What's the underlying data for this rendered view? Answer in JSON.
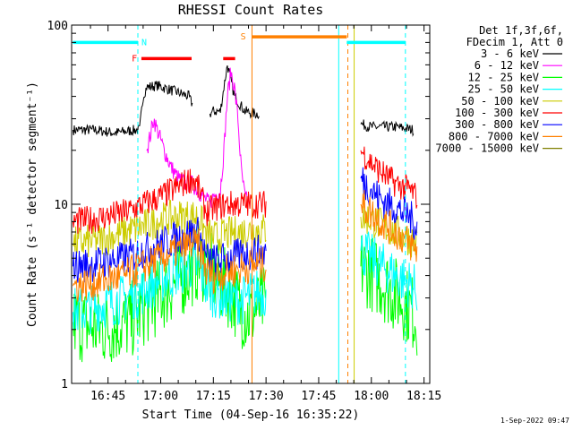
{
  "chart_data": {
    "type": "line",
    "title": "RHESSI Count Rates",
    "xlabel": "Start Time (04-Sep-16 16:35:22)",
    "ylabel": "Count Rate (s⁻¹ detector segment⁻¹)",
    "yscale": "log",
    "ylim": [
      1,
      100
    ],
    "xlim_minutes": [
      -0.37,
      101.63
    ],
    "x_ticks": [
      {
        "label": "16:45",
        "minutes": 10
      },
      {
        "label": "17:00",
        "minutes": 25
      },
      {
        "label": "17:15",
        "minutes": 40
      },
      {
        "label": "17:30",
        "minutes": 55
      },
      {
        "label": "17:45",
        "minutes": 70
      },
      {
        "label": "18:00",
        "minutes": 85
      },
      {
        "label": "18:15",
        "minutes": 100
      }
    ],
    "y_ticks": [
      {
        "label": "1",
        "value": 1
      },
      {
        "label": "10",
        "value": 10
      },
      {
        "label": "100",
        "value": 100
      }
    ],
    "legend_header": [
      "Det 1f,3f,6f,",
      "FDecim 1, Att 0"
    ],
    "legend_position": "right",
    "timestamp": "1-Sep-2022 09:47",
    "series": [
      {
        "name": "3 - 6 keV",
        "color": "#000000",
        "x": [
          0,
          6,
          12,
          18,
          19,
          20,
          21,
          24,
          27,
          30,
          33,
          34,
          34.5,
          39,
          40,
          42,
          43,
          44,
          46,
          49,
          52,
          53,
          55,
          56,
          76,
          78,
          80,
          82,
          85,
          88,
          92,
          97
        ],
        "y": [
          26,
          26,
          25,
          26,
          26,
          40,
          45,
          46,
          44,
          42,
          40,
          36,
          null,
          32,
          33,
          33,
          45,
          60,
          40,
          33,
          32,
          32,
          null,
          null,
          null,
          null,
          null,
          28,
          27,
          27,
          27,
          26
        ]
      },
      {
        "name": "6 - 12 keV",
        "color": "#ff00ff",
        "x": [
          21,
          22,
          23,
          24,
          26,
          28,
          30,
          32,
          34,
          39,
          40,
          42,
          43,
          44,
          45,
          46,
          47,
          48,
          49,
          50
        ],
        "y": [
          20,
          24,
          30,
          26,
          20,
          16,
          14,
          13,
          13,
          10,
          11,
          12,
          20,
          40,
          55,
          45,
          30,
          15,
          11,
          10
        ]
      },
      {
        "name": "12 - 25 keV",
        "color": "#00ff00",
        "x": [
          0,
          4,
          8,
          12,
          16,
          20,
          24,
          28,
          32,
          34,
          36,
          38,
          40,
          42,
          44,
          46,
          48,
          50,
          52,
          54,
          55,
          56,
          80,
          81,
          82,
          84,
          86,
          88,
          90,
          92,
          94,
          96,
          98
        ],
        "y": [
          2.2,
          2.1,
          2.0,
          2.1,
          2.2,
          2.6,
          3.0,
          3.5,
          4.0,
          4.4,
          4.8,
          4.6,
          4.0,
          3.6,
          3.4,
          3.0,
          2.6,
          2.4,
          2.6,
          2.8,
          2.8,
          null,
          null,
          null,
          4.5,
          4.3,
          4.0,
          3.7,
          3.4,
          3.1,
          2.9,
          2.6,
          2.3
        ]
      },
      {
        "name": "25 - 50 keV",
        "color": "#00ffff",
        "x": [
          0,
          5,
          10,
          15,
          20,
          25,
          30,
          34,
          36,
          38,
          40,
          44,
          48,
          52,
          55,
          56,
          80,
          81,
          82,
          85,
          88,
          92,
          96,
          98
        ],
        "y": [
          2.5,
          2.6,
          2.8,
          3.0,
          3.3,
          3.8,
          4.2,
          4.6,
          4.4,
          3.5,
          3.2,
          3.0,
          2.9,
          3.2,
          3.2,
          null,
          null,
          null,
          5.5,
          5.0,
          4.5,
          4.0,
          3.6,
          3.3
        ]
      },
      {
        "name": "50 - 100 keV",
        "color": "#cccc00",
        "x": [
          0,
          5,
          10,
          15,
          20,
          25,
          30,
          34,
          36,
          38,
          40,
          44,
          48,
          52,
          55,
          56,
          80,
          81,
          82,
          85,
          88,
          92,
          96,
          98
        ],
        "y": [
          6.0,
          6.2,
          6.5,
          7.0,
          7.5,
          8.2,
          8.5,
          8.6,
          8.4,
          6.8,
          6.5,
          6.8,
          7.0,
          7.2,
          7.2,
          null,
          null,
          null,
          8.5,
          8.2,
          7.6,
          7.0,
          6.4,
          6.0
        ]
      },
      {
        "name": "100 - 300 keV",
        "color": "#ff0000",
        "x": [
          0,
          5,
          10,
          15,
          20,
          25,
          30,
          34,
          36,
          38,
          40,
          44,
          48,
          52,
          55,
          56,
          80,
          81,
          82,
          85,
          88,
          92,
          96,
          98
        ],
        "y": [
          8.0,
          8.2,
          8.6,
          9.0,
          10.0,
          11.0,
          12.5,
          14.0,
          12.0,
          9.0,
          9.5,
          10.0,
          10.0,
          10.0,
          10.0,
          null,
          null,
          null,
          20,
          17,
          15,
          13,
          12,
          11
        ]
      },
      {
        "name": "300 - 800 keV",
        "color": "#0000ff",
        "x": [
          0,
          5,
          10,
          15,
          20,
          25,
          30,
          34,
          36,
          38,
          40,
          44,
          48,
          52,
          55,
          56,
          80,
          81,
          82,
          85,
          88,
          92,
          96,
          98
        ],
        "y": [
          4.5,
          4.6,
          4.8,
          5.0,
          5.5,
          6.0,
          6.5,
          7.0,
          6.8,
          5.0,
          4.8,
          5.0,
          5.2,
          5.4,
          5.4,
          null,
          null,
          null,
          14,
          12,
          10.5,
          9.5,
          8.5,
          7.5
        ]
      },
      {
        "name": "800 - 7000 keV",
        "color": "#ff8000",
        "x": [
          0,
          5,
          10,
          15,
          20,
          25,
          30,
          34,
          36,
          38,
          40,
          44,
          48,
          52,
          55,
          56,
          80,
          81,
          82,
          85,
          88,
          92,
          96,
          98
        ],
        "y": [
          3.5,
          3.6,
          3.8,
          4.0,
          4.5,
          5.0,
          5.5,
          6.0,
          5.8,
          4.2,
          4.0,
          4.2,
          4.4,
          4.6,
          4.6,
          null,
          null,
          null,
          10,
          9,
          8,
          7,
          6,
          5.5
        ]
      },
      {
        "name": "7000 - 15000 keV",
        "color": "#808000",
        "x": [],
        "y": []
      }
    ],
    "bars": [
      {
        "label": "N",
        "color": "#00ffff",
        "y": 80,
        "segments": [
          [
            0,
            18.5
          ],
          [
            78,
            94.7
          ]
        ],
        "label_at": 20.3
      },
      {
        "label": "F",
        "color": "#ff0000",
        "y": 65,
        "segments": [
          [
            19.5,
            33.8
          ],
          [
            42.8,
            46.2
          ]
        ],
        "label_at": 17.5
      },
      {
        "label": "S",
        "color": "#ff8000",
        "y": 86,
        "segments": [
          [
            51,
            78
          ]
        ],
        "label_at": 48.5
      }
    ],
    "vlines": [
      {
        "color": "#00ffff",
        "style": "dashed",
        "x": 18.5
      },
      {
        "color": "#00ffff",
        "style": "dashed",
        "x": 94.7
      },
      {
        "color": "#ff8000",
        "style": "solid",
        "x": 51
      },
      {
        "color": "#00ffff",
        "style": "solid",
        "x": 75.7
      },
      {
        "color": "#ff8000",
        "style": "dashed",
        "x": 78.3
      },
      {
        "color": "#cccc00",
        "style": "solid",
        "x": 80.1
      }
    ]
  }
}
